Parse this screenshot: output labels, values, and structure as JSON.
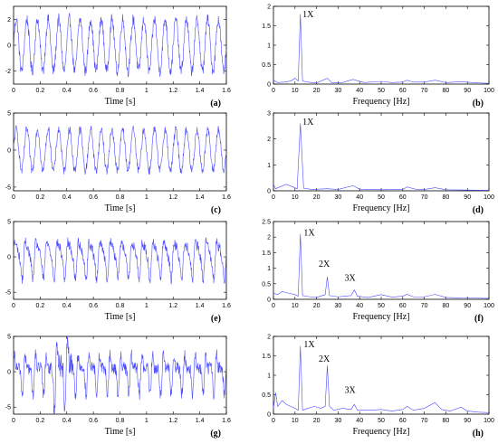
{
  "chart_data": [
    {
      "id": "a",
      "type": "line",
      "panel_label": "(a)",
      "xlabel": "Time [s]",
      "xlim": [
        0,
        1.6
      ],
      "ylim": [
        -3,
        3
      ],
      "xticks": [
        0,
        0.2,
        0.4,
        0.6,
        0.8,
        1,
        1.2,
        1.4,
        1.6
      ],
      "xtick_labels": [
        "0",
        "0.2",
        "0.4",
        "0.6",
        "0.8",
        "1",
        "1.2",
        "1.4",
        "1.6"
      ],
      "yticks": [
        -2,
        0,
        2
      ],
      "ytick_labels": [
        "-2",
        "0",
        "2"
      ],
      "signal": {
        "freq_hz": 12.5,
        "h1": 2.0,
        "h2": 0,
        "h3": 0,
        "noise": 0.45,
        "burst": 0,
        "samples": 640
      },
      "color": "#4b4bff"
    },
    {
      "id": "b",
      "type": "line",
      "panel_label": "(b)",
      "xlabel": "Frequency [Hz]",
      "xlim": [
        0,
        100
      ],
      "ylim": [
        0,
        2
      ],
      "xticks": [
        0,
        10,
        20,
        30,
        40,
        50,
        60,
        70,
        80,
        90,
        100
      ],
      "xtick_labels": [
        "0",
        "10",
        "20",
        "30",
        "40",
        "50",
        "60",
        "70",
        "80",
        "90",
        "100"
      ],
      "yticks": [
        0,
        0.5,
        1,
        1.5,
        2
      ],
      "ytick_labels": [
        "0",
        "0.5",
        "1",
        "1.5",
        "2"
      ],
      "points": [
        [
          0,
          0.1
        ],
        [
          2,
          0.04
        ],
        [
          5,
          0.05
        ],
        [
          8,
          0.08
        ],
        [
          10,
          0.15
        ],
        [
          11.5,
          0.08
        ],
        [
          12.5,
          1.8
        ],
        [
          13.5,
          0.08
        ],
        [
          16,
          0.05
        ],
        [
          20,
          0.03
        ],
        [
          25,
          0.15
        ],
        [
          27,
          0.04
        ],
        [
          32,
          0.04
        ],
        [
          37,
          0.12
        ],
        [
          42,
          0.04
        ],
        [
          50,
          0.07
        ],
        [
          55,
          0.04
        ],
        [
          60,
          0.05
        ],
        [
          62,
          0.1
        ],
        [
          65,
          0.05
        ],
        [
          70,
          0.05
        ],
        [
          75,
          0.1
        ],
        [
          80,
          0.04
        ],
        [
          87,
          0.06
        ],
        [
          95,
          0.03
        ],
        [
          100,
          0.02
        ]
      ],
      "annotations": [
        {
          "text": "1X",
          "x": 13.5,
          "y": 1.72
        }
      ],
      "color": "#4b4bff"
    },
    {
      "id": "c",
      "type": "line",
      "panel_label": "(c)",
      "xlabel": "Time [s]",
      "xlim": [
        0,
        1.6
      ],
      "ylim": [
        -5.5,
        5
      ],
      "xticks": [
        0,
        0.2,
        0.4,
        0.6,
        0.8,
        1,
        1.2,
        1.4,
        1.6
      ],
      "xtick_labels": [
        "0",
        "0.2",
        "0.4",
        "0.6",
        "0.8",
        "1",
        "1.2",
        "1.4",
        "1.6"
      ],
      "yticks": [
        -5,
        0,
        5
      ],
      "ytick_labels": [
        "-5",
        "0",
        "5"
      ],
      "signal": {
        "freq_hz": 12.5,
        "h1": 2.8,
        "h2": 0,
        "h3": 0,
        "noise": 0.6,
        "burst": 0,
        "samples": 640
      },
      "color": "#4b4bff"
    },
    {
      "id": "d",
      "type": "line",
      "panel_label": "(d)",
      "xlabel": "Frequency [Hz]",
      "xlim": [
        0,
        100
      ],
      "ylim": [
        0,
        3
      ],
      "xticks": [
        0,
        10,
        20,
        30,
        40,
        50,
        60,
        70,
        80,
        90,
        100
      ],
      "xtick_labels": [
        "0",
        "10",
        "20",
        "30",
        "40",
        "50",
        "60",
        "70",
        "80",
        "90",
        "100"
      ],
      "yticks": [
        0,
        1,
        2,
        3
      ],
      "ytick_labels": [
        "0",
        "1",
        "2",
        "3"
      ],
      "points": [
        [
          0,
          0.25
        ],
        [
          1,
          0.08
        ],
        [
          3,
          0.15
        ],
        [
          6,
          0.25
        ],
        [
          9,
          0.15
        ],
        [
          11,
          0.08
        ],
        [
          12.5,
          2.6
        ],
        [
          14,
          0.1
        ],
        [
          18,
          0.05
        ],
        [
          25,
          0.08
        ],
        [
          30,
          0.05
        ],
        [
          37,
          0.2
        ],
        [
          40,
          0.06
        ],
        [
          50,
          0.04
        ],
        [
          55,
          0.05
        ],
        [
          60,
          0.05
        ],
        [
          62,
          0.15
        ],
        [
          66,
          0.06
        ],
        [
          70,
          0.05
        ],
        [
          75,
          0.12
        ],
        [
          80,
          0.04
        ],
        [
          90,
          0.03
        ],
        [
          100,
          0.02
        ]
      ],
      "annotations": [
        {
          "text": "1X",
          "x": 13.5,
          "y": 2.55
        }
      ],
      "color": "#4b4bff"
    },
    {
      "id": "e",
      "type": "line",
      "panel_label": "(e)",
      "xlabel": "Time [s]",
      "xlim": [
        0,
        1.6
      ],
      "ylim": [
        -6,
        5
      ],
      "xticks": [
        0,
        0.2,
        0.4,
        0.6,
        0.8,
        1,
        1.2,
        1.4,
        1.6
      ],
      "xtick_labels": [
        "0",
        "0.2",
        "0.4",
        "0.6",
        "0.8",
        "1",
        "1.2",
        "1.4",
        "1.6"
      ],
      "yticks": [
        -5,
        0,
        5
      ],
      "ytick_labels": [
        "-5",
        "0",
        "5"
      ],
      "signal": {
        "freq_hz": 12.5,
        "h1": 2.2,
        "h2": 0.9,
        "h3": 0.4,
        "noise": 0.7,
        "burst": 0,
        "samples": 640
      },
      "color": "#4b4bff"
    },
    {
      "id": "f",
      "type": "line",
      "panel_label": "(f)",
      "xlabel": "Frequency [Hz]",
      "xlim": [
        0,
        100
      ],
      "ylim": [
        0,
        2.5
      ],
      "xticks": [
        0,
        10,
        20,
        30,
        40,
        50,
        60,
        70,
        80,
        90,
        100
      ],
      "xtick_labels": [
        "0",
        "10",
        "20",
        "30",
        "40",
        "50",
        "60",
        "70",
        "80",
        "90",
        "100"
      ],
      "yticks": [
        0,
        0.5,
        1,
        1.5,
        2,
        2.5
      ],
      "ytick_labels": [
        "0",
        "0.5",
        "1",
        "1.5",
        "2",
        "2.5"
      ],
      "points": [
        [
          0,
          0.2
        ],
        [
          2,
          0.15
        ],
        [
          4,
          0.25
        ],
        [
          7,
          0.2
        ],
        [
          10,
          0.15
        ],
        [
          11.5,
          0.1
        ],
        [
          12.5,
          2.1
        ],
        [
          13.5,
          0.12
        ],
        [
          17,
          0.08
        ],
        [
          20,
          0.06
        ],
        [
          24,
          0.15
        ],
        [
          25,
          0.72
        ],
        [
          26,
          0.12
        ],
        [
          30,
          0.08
        ],
        [
          36,
          0.12
        ],
        [
          37.5,
          0.3
        ],
        [
          39,
          0.1
        ],
        [
          44,
          0.06
        ],
        [
          50,
          0.15
        ],
        [
          55,
          0.07
        ],
        [
          60,
          0.1
        ],
        [
          62,
          0.16
        ],
        [
          65,
          0.08
        ],
        [
          70,
          0.08
        ],
        [
          75,
          0.16
        ],
        [
          80,
          0.06
        ],
        [
          85,
          0.05
        ],
        [
          90,
          0.04
        ],
        [
          100,
          0.03
        ]
      ],
      "annotations": [
        {
          "text": "1X",
          "x": 14,
          "y": 2.05
        },
        {
          "text": "2X",
          "x": 21,
          "y": 1.05
        },
        {
          "text": "3X",
          "x": 33,
          "y": 0.6
        }
      ],
      "color": "#4b4bff"
    },
    {
      "id": "g",
      "type": "line",
      "panel_label": "(g)",
      "xlabel": "Time [s]",
      "xlim": [
        0,
        1.6
      ],
      "ylim": [
        -6,
        5
      ],
      "xticks": [
        0,
        0.2,
        0.4,
        0.6,
        0.8,
        1,
        1.2,
        1.4,
        1.6
      ],
      "xtick_labels": [
        "0",
        "0.2",
        "0.4",
        "0.6",
        "0.8",
        "1",
        "1.2",
        "1.4",
        "1.6"
      ],
      "yticks": [
        -5,
        0,
        5
      ],
      "ytick_labels": [
        "-5",
        "0",
        "5"
      ],
      "signal": {
        "freq_hz": 12.5,
        "h1": 1.6,
        "h2": 1.4,
        "h3": 0.5,
        "noise": 0.9,
        "burst": 1.5,
        "samples": 640
      },
      "color": "#4b4bff"
    },
    {
      "id": "h",
      "type": "line",
      "panel_label": "(h)",
      "xlabel": "Frequency [Hz]",
      "xlim": [
        0,
        100
      ],
      "ylim": [
        0,
        2
      ],
      "xticks": [
        0,
        10,
        20,
        30,
        40,
        50,
        60,
        70,
        80,
        90,
        100
      ],
      "xtick_labels": [
        "0",
        "10",
        "20",
        "30",
        "40",
        "50",
        "60",
        "70",
        "80",
        "90",
        "100"
      ],
      "yticks": [
        0,
        0.5,
        1,
        1.5,
        2
      ],
      "ytick_labels": [
        "0",
        "0.5",
        "1",
        "1.5",
        "2"
      ],
      "points": [
        [
          0,
          0.15
        ],
        [
          1,
          0.55
        ],
        [
          2,
          0.2
        ],
        [
          4,
          0.35
        ],
        [
          6,
          0.25
        ],
        [
          8,
          0.2
        ],
        [
          10,
          0.15
        ],
        [
          11.5,
          0.1
        ],
        [
          12.5,
          1.75
        ],
        [
          13.5,
          0.1
        ],
        [
          16,
          0.15
        ],
        [
          19,
          0.2
        ],
        [
          22,
          0.15
        ],
        [
          24,
          0.2
        ],
        [
          25,
          1.25
        ],
        [
          26,
          0.2
        ],
        [
          28,
          0.1
        ],
        [
          32,
          0.15
        ],
        [
          36,
          0.12
        ],
        [
          37.5,
          0.25
        ],
        [
          39,
          0.1
        ],
        [
          45,
          0.1
        ],
        [
          50,
          0.12
        ],
        [
          55,
          0.08
        ],
        [
          60,
          0.12
        ],
        [
          62,
          0.2
        ],
        [
          65,
          0.1
        ],
        [
          70,
          0.15
        ],
        [
          75,
          0.3
        ],
        [
          78,
          0.12
        ],
        [
          82,
          0.08
        ],
        [
          87,
          0.18
        ],
        [
          90,
          0.08
        ],
        [
          95,
          0.05
        ],
        [
          100,
          0.04
        ]
      ],
      "annotations": [
        {
          "text": "1X",
          "x": 14,
          "y": 1.72
        },
        {
          "text": "2X",
          "x": 21,
          "y": 1.35
        },
        {
          "text": "3X",
          "x": 33,
          "y": 0.55
        }
      ],
      "color": "#4b4bff"
    }
  ]
}
